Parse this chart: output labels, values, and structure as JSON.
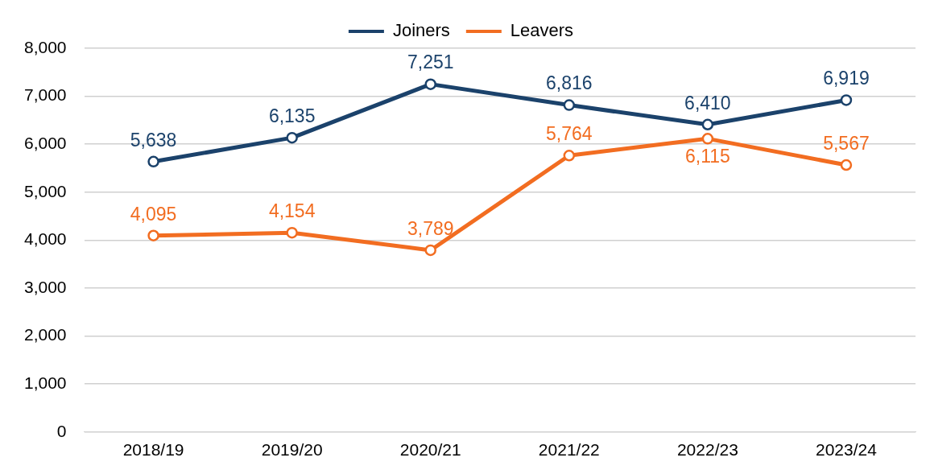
{
  "chart_data": {
    "type": "line",
    "categories": [
      "2018/19",
      "2019/20",
      "2020/21",
      "2021/22",
      "2022/23",
      "2023/24"
    ],
    "series": [
      {
        "name": "Joiners",
        "color": "#1b426b",
        "values": [
          5638,
          6135,
          7251,
          6816,
          6410,
          6919
        ],
        "value_labels": [
          "5,638",
          "6,135",
          "7,251",
          "6,816",
          "6,410",
          "6,919"
        ]
      },
      {
        "name": "Leavers",
        "color": "#f26d21",
        "values": [
          4095,
          4154,
          3789,
          5764,
          6115,
          5567
        ],
        "value_labels": [
          "4,095",
          "4,154",
          "3,789",
          "5,764",
          "6,115",
          "5,567"
        ]
      }
    ],
    "ylim": [
      0,
      8000
    ],
    "yticks": [
      {
        "value": 0,
        "label": "0"
      },
      {
        "value": 1000,
        "label": "1,000"
      },
      {
        "value": 2000,
        "label": "2,000"
      },
      {
        "value": 3000,
        "label": "3,000"
      },
      {
        "value": 4000,
        "label": "4,000"
      },
      {
        "value": 5000,
        "label": "5,000"
      },
      {
        "value": 6000,
        "label": "6,000"
      },
      {
        "value": 7000,
        "label": "7,000"
      },
      {
        "value": 8000,
        "label": "8,000"
      }
    ],
    "grid": "y",
    "legend": "top",
    "marker": "circle",
    "line_style": "solid"
  }
}
